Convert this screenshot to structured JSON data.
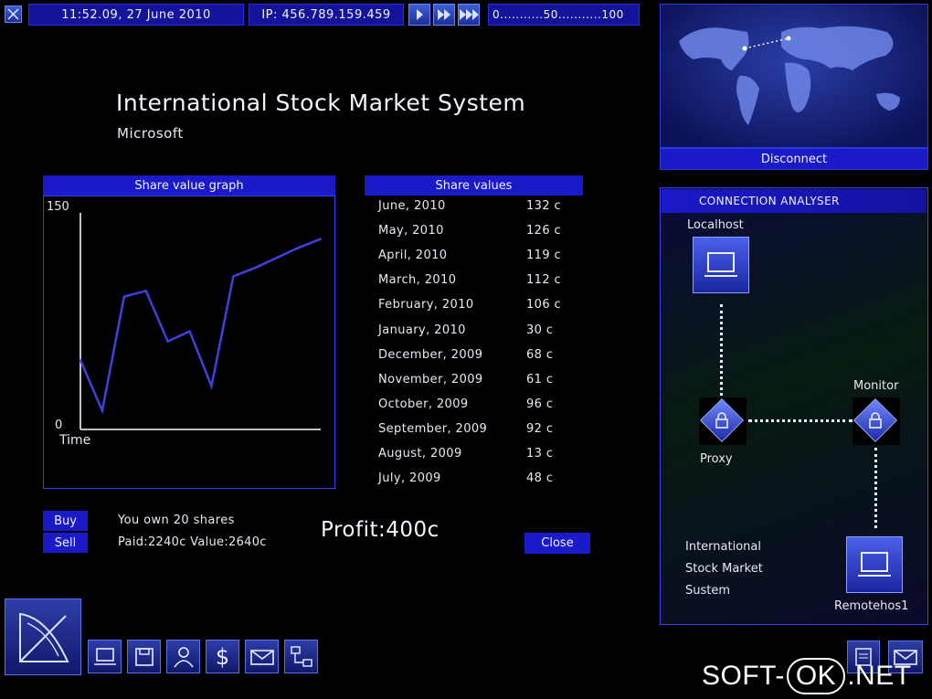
{
  "topbar": {
    "datetime": "11:52.09, 27 June 2010",
    "ip": "IP: 456.789.159.459",
    "speed_scale": "0...........50...........100"
  },
  "header": {
    "title": "International Stock Market System",
    "subtitle": "Microsoft"
  },
  "graph": {
    "header": "Share value graph",
    "y_max_label": "150",
    "y_min_label": "0",
    "x_label": "Time"
  },
  "chart_data": {
    "type": "line",
    "ylim": [
      0,
      150
    ],
    "x": [
      "July, 2009",
      "August, 2009",
      "September, 2009",
      "October, 2009",
      "November, 2009",
      "December, 2009",
      "January, 2010",
      "February, 2010",
      "March, 2010",
      "April, 2010",
      "May, 2010",
      "June, 2010"
    ],
    "values": [
      48,
      13,
      92,
      96,
      61,
      68,
      30,
      106,
      112,
      119,
      126,
      132
    ]
  },
  "share_values": {
    "header": "Share values",
    "rows": [
      {
        "month": "June, 2010",
        "value": "132 c"
      },
      {
        "month": "May, 2010",
        "value": "126 c"
      },
      {
        "month": "April, 2010",
        "value": "119 c"
      },
      {
        "month": "March, 2010",
        "value": "112 c"
      },
      {
        "month": "February, 2010",
        "value": "106 c"
      },
      {
        "month": "January, 2010",
        "value": "30 c"
      },
      {
        "month": "December, 2009",
        "value": "68 c"
      },
      {
        "month": "November, 2009",
        "value": "61 c"
      },
      {
        "month": "October, 2009",
        "value": "96 c"
      },
      {
        "month": "September, 2009",
        "value": "92 c"
      },
      {
        "month": "August, 2009",
        "value": "13 c"
      },
      {
        "month": "July, 2009",
        "value": "48 c"
      }
    ]
  },
  "trade": {
    "buy": "Buy",
    "sell": "Sell",
    "owned": "You own 20 shares",
    "paid_value": "Paid:2240c Value:2640c",
    "profit": "Profit:400c",
    "close": "Close"
  },
  "map": {
    "disconnect": "Disconnect"
  },
  "analyser": {
    "header": "CONNECTION ANALYSER",
    "localhost": "Localhost",
    "monitor": "Monitor",
    "proxy": "Proxy",
    "remotehost": "Remotehos1",
    "target_line1": "International",
    "target_line2": "Stock Market",
    "target_line3": "Sustem"
  },
  "watermark": {
    "text1": "SOFT-",
    "text2": "OK",
    "text3": ".NET"
  },
  "colors": {
    "accent": "#1a1ac8",
    "panel_border": "#3a3aff",
    "chart_line": "#4040e0"
  }
}
